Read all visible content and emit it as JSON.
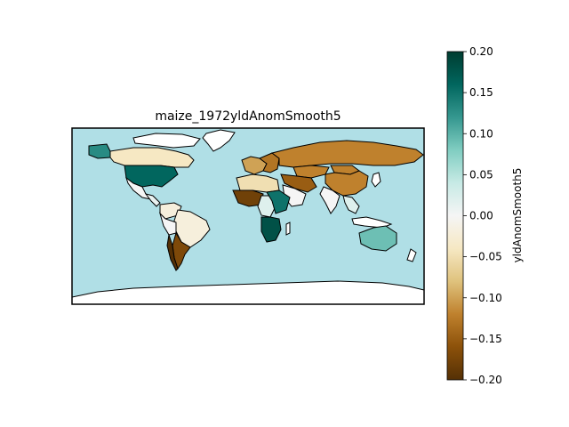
{
  "map": {
    "title": "maize_1972yldAnomSmooth5",
    "ocean_color": "#b0dfe6",
    "no_data_color": "#ffffff",
    "border_color": "#000000"
  },
  "regions": [
    {
      "name": "canada",
      "value": -0.04
    },
    {
      "name": "alaska",
      "value": 0.13
    },
    {
      "name": "united-states",
      "value": 0.16
    },
    {
      "name": "mexico",
      "value": 0.0
    },
    {
      "name": "central-america",
      "value": 0.01
    },
    {
      "name": "colombia-venezuela",
      "value": -0.02
    },
    {
      "name": "brazil",
      "value": -0.02
    },
    {
      "name": "peru-bolivia",
      "value": 0.0
    },
    {
      "name": "argentina",
      "value": -0.17
    },
    {
      "name": "chile",
      "value": -0.2
    },
    {
      "name": "western-europe",
      "value": -0.1
    },
    {
      "name": "eastern-europe",
      "value": -0.13
    },
    {
      "name": "russia",
      "value": -0.12
    },
    {
      "name": "kazakhstan",
      "value": -0.12
    },
    {
      "name": "china",
      "value": -0.12
    },
    {
      "name": "mongolia",
      "value": -0.12
    },
    {
      "name": "india",
      "value": 0.0
    },
    {
      "name": "southeast-asia",
      "value": 0.02
    },
    {
      "name": "middle-east",
      "value": -0.15
    },
    {
      "name": "saudi-arabia",
      "value": 0.0
    },
    {
      "name": "north-africa",
      "value": -0.05
    },
    {
      "name": "west-africa",
      "value": -0.18
    },
    {
      "name": "east-africa",
      "value": 0.15
    },
    {
      "name": "central-africa",
      "value": 0.02
    },
    {
      "name": "southern-africa",
      "value": 0.18
    },
    {
      "name": "australia",
      "value": 0.09
    }
  ],
  "colorbar": {
    "label": "yldAnomSmooth5",
    "min": -0.2,
    "max": 0.2,
    "ticks": [
      {
        "value": 0.2,
        "label": "0.20"
      },
      {
        "value": 0.15,
        "label": "0.15"
      },
      {
        "value": 0.1,
        "label": "0.10"
      },
      {
        "value": 0.05,
        "label": "0.05"
      },
      {
        "value": 0.0,
        "label": "0.00"
      },
      {
        "value": -0.05,
        "label": "−0.05"
      },
      {
        "value": -0.1,
        "label": "−0.10"
      },
      {
        "value": -0.15,
        "label": "−0.15"
      },
      {
        "value": -0.2,
        "label": "−0.20"
      }
    ],
    "stops": [
      "#543005",
      "#8c510a",
      "#bf812d",
      "#dfc27d",
      "#f6e8c3",
      "#f5f5f5",
      "#c7eae5",
      "#80cdc1",
      "#35978f",
      "#01665e",
      "#003c30"
    ]
  }
}
